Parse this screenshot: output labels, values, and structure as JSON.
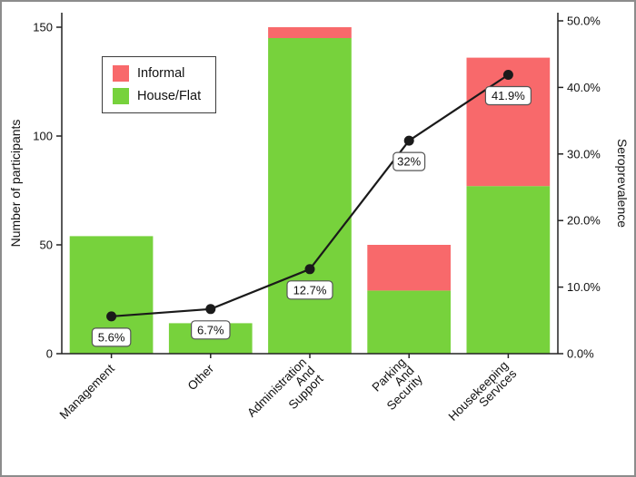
{
  "figure": {
    "background": "#ffffff",
    "border_color": "#8c8c8c"
  },
  "legend": {
    "items": [
      {
        "label": "Informal",
        "color": "#f8696b"
      },
      {
        "label": "House/Flat",
        "color": "#77d23c"
      }
    ]
  },
  "chart_data": {
    "type": "bar",
    "title": "",
    "categories": [
      "Management",
      "Other",
      "Administration And Support",
      "Parking And Security",
      "Housekeeping Services"
    ],
    "category_lines": [
      [
        "Management"
      ],
      [
        "Other"
      ],
      [
        "Administration",
        "And",
        "Support"
      ],
      [
        "Parking",
        "And",
        "Security"
      ],
      [
        "Housekeeping",
        "Services"
      ]
    ],
    "series": [
      {
        "name": "House/Flat",
        "type": "bar",
        "stacked": true,
        "color": "#77d23c",
        "values": [
          54,
          14,
          145,
          29,
          77
        ]
      },
      {
        "name": "Informal",
        "type": "bar",
        "stacked": true,
        "color": "#f8696b",
        "values": [
          0,
          0,
          5,
          21,
          59
        ]
      },
      {
        "name": "Seroprevalence",
        "type": "line",
        "color": "#1a1a1a",
        "values": [
          5.6,
          6.7,
          12.7,
          32,
          41.9
        ],
        "labels": [
          "5.6%",
          "6.7%",
          "12.7%",
          "32%",
          "41.9%"
        ]
      }
    ],
    "ylabel_left": "Number of participants",
    "ylabel_right": "Seroprevalence",
    "yaxis_left": {
      "min": 0,
      "max": 150,
      "ticks": [
        0,
        50,
        100,
        150
      ],
      "tick_labels": [
        "0",
        "50",
        "100",
        "150"
      ]
    },
    "yaxis_right": {
      "min": 0,
      "max": 50,
      "ticks": [
        0,
        10,
        20,
        30,
        40,
        50
      ],
      "tick_labels": [
        "0.0%",
        "10.0%",
        "20.0%",
        "30.0%",
        "40.0%",
        "50.0%"
      ]
    },
    "grid": false,
    "legend_position": "top-left-inside"
  }
}
